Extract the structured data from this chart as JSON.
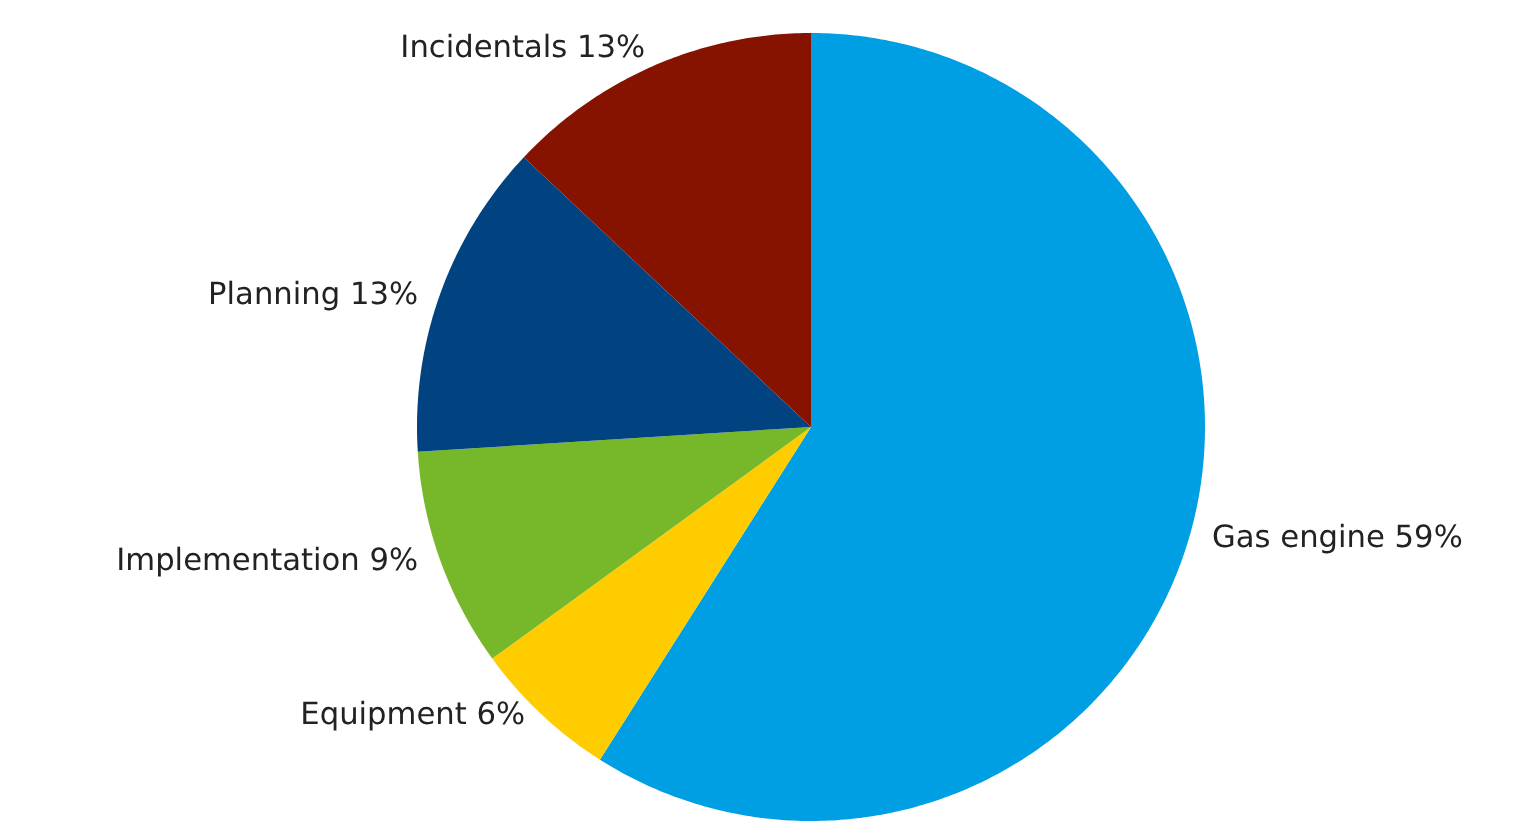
{
  "chart_data": {
    "type": "pie",
    "categories": [
      "Gas engine",
      "Equipment",
      "Implementation",
      "Planning",
      "Incidentals"
    ],
    "values": [
      59,
      6,
      9,
      13,
      13
    ],
    "value_labels": [
      "59%",
      "6%",
      "9%",
      "13%",
      "13%"
    ],
    "colors": [
      "#009fe3",
      "#ffcc00",
      "#76b82a",
      "#004380",
      "#861200"
    ],
    "legend": false
  }
}
